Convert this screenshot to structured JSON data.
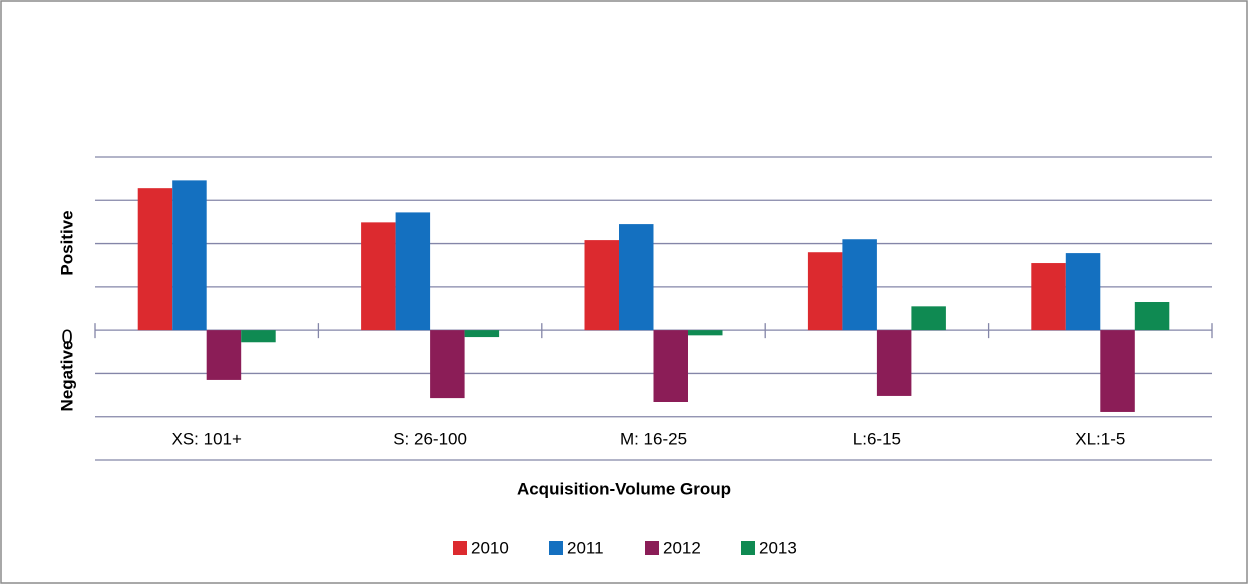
{
  "chart_data": {
    "type": "bar",
    "x_axis_label": "Acquisition-Volume Group",
    "y_axis_labels": {
      "positive": "Positive",
      "negative": "Negative"
    },
    "categories": [
      "XS: 101+",
      "S: 26-100",
      "M: 16-25",
      "L:6-15",
      "XL:1-5"
    ],
    "series": [
      {
        "name": "2010",
        "color": "#dc2a2f",
        "values": [
          3.28,
          2.49,
          2.08,
          1.8,
          1.55
        ]
      },
      {
        "name": "2011",
        "color": "#1470c0",
        "values": [
          3.46,
          2.72,
          2.45,
          2.1,
          1.78
        ]
      },
      {
        "name": "2012",
        "color": "#8b1d57",
        "values": [
          -1.15,
          -1.57,
          -1.66,
          -1.52,
          -1.89
        ]
      },
      {
        "name": "2013",
        "color": "#0f8a52",
        "values": [
          -0.28,
          -0.16,
          -0.12,
          0.55,
          0.65
        ]
      }
    ],
    "ylim": [
      -3,
      4
    ],
    "yticks": [
      0
    ],
    "grid": [
      -3,
      -2,
      -1,
      0,
      1,
      2,
      3,
      4
    ],
    "legend": "bottom"
  }
}
